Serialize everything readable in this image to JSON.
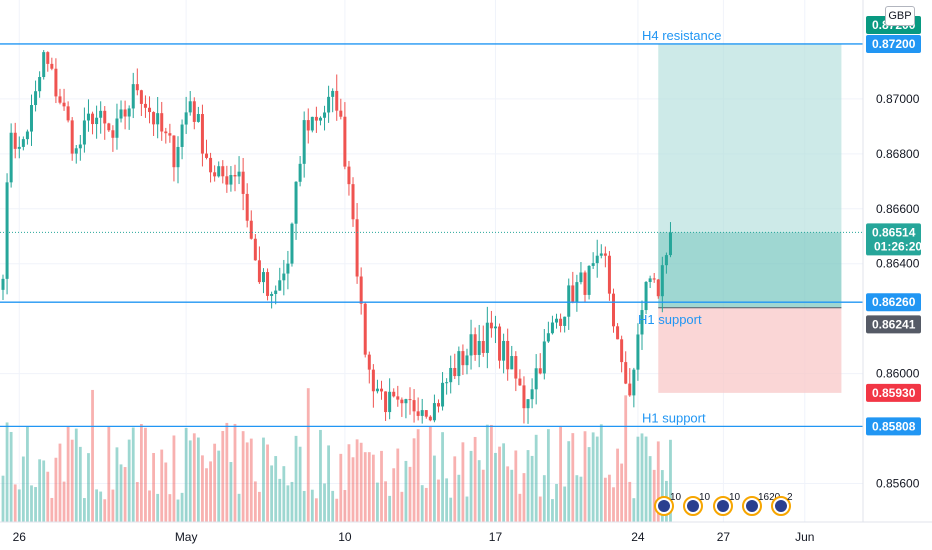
{
  "currency": "GBP",
  "chart_data": {
    "type": "candlestick",
    "y_range": [
      0.8546,
      0.8736
    ],
    "y_ticks": [
      "0.87000",
      "0.86800",
      "0.86600",
      "0.86400",
      "0.86000",
      "0.85600"
    ],
    "y_tick_values": [
      0.87,
      0.868,
      0.866,
      0.864,
      0.86,
      0.856
    ],
    "x_ticks": [
      "26",
      "May",
      "10",
      "17",
      "24",
      "27",
      "Jun"
    ],
    "x_tick_positions": [
      4,
      45,
      84,
      121,
      156,
      177,
      197
    ],
    "bar_count": 165,
    "anchors": [
      [
        0,
        0.864
      ],
      [
        2,
        0.869
      ],
      [
        4,
        0.868
      ],
      [
        8,
        0.87
      ],
      [
        10,
        0.8715
      ],
      [
        14,
        0.87
      ],
      [
        18,
        0.868
      ],
      [
        22,
        0.8695
      ],
      [
        27,
        0.8685
      ],
      [
        33,
        0.8705
      ],
      [
        38,
        0.869
      ],
      [
        42,
        0.868
      ],
      [
        46,
        0.87
      ],
      [
        52,
        0.867
      ],
      [
        58,
        0.8675
      ],
      [
        62,
        0.864
      ],
      [
        66,
        0.8625
      ],
      [
        70,
        0.864
      ],
      [
        74,
        0.869
      ],
      [
        78,
        0.8695
      ],
      [
        82,
        0.87
      ],
      [
        86,
        0.866
      ],
      [
        88,
        0.862
      ],
      [
        90,
        0.86
      ],
      [
        94,
        0.859
      ],
      [
        98,
        0.8585
      ],
      [
        102,
        0.859
      ],
      [
        106,
        0.8588
      ],
      [
        110,
        0.86
      ],
      [
        115,
        0.861
      ],
      [
        120,
        0.8615
      ],
      [
        124,
        0.8605
      ],
      [
        128,
        0.859
      ],
      [
        132,
        0.8605
      ],
      [
        136,
        0.862
      ],
      [
        140,
        0.863
      ],
      [
        144,
        0.8635
      ],
      [
        148,
        0.864
      ],
      [
        152,
        0.86
      ],
      [
        154,
        0.8595
      ],
      [
        156,
        0.861
      ],
      [
        158,
        0.8635
      ],
      [
        161,
        0.863
      ],
      [
        164,
        0.8651
      ]
    ],
    "levels": [
      {
        "value": 0.872,
        "label": "H4 resistance",
        "tag": "0.87200"
      },
      {
        "value": 0.8626,
        "label": "H1 support",
        "tag": "0.86260"
      },
      {
        "value": 0.85808,
        "label": "H1 support",
        "tag": "0.85808"
      }
    ],
    "position": {
      "entry": 0.8624,
      "target": 0.872,
      "stop": 0.8593,
      "start_bar": 161,
      "end_bar": 206
    },
    "current_price": {
      "value": 0.86514,
      "tag": "0.86514",
      "countdown": "01:26:20"
    },
    "price_tags": [
      {
        "value": 0.872,
        "tag": "0.87200",
        "color": "#089981"
      },
      {
        "value": 0.86241,
        "tag": "0.86241",
        "color": "#555a66"
      },
      {
        "value": 0.8593,
        "tag": "0.85930",
        "color": "#f23645"
      }
    ],
    "events": [
      "10",
      "10",
      "10",
      "1620",
      "2"
    ],
    "colors": {
      "up": "#26a69a",
      "down": "#ef5350",
      "line": "#2196f3",
      "target_zone": "#b2dfdb",
      "stop_zone": "#f8c8c8"
    }
  }
}
